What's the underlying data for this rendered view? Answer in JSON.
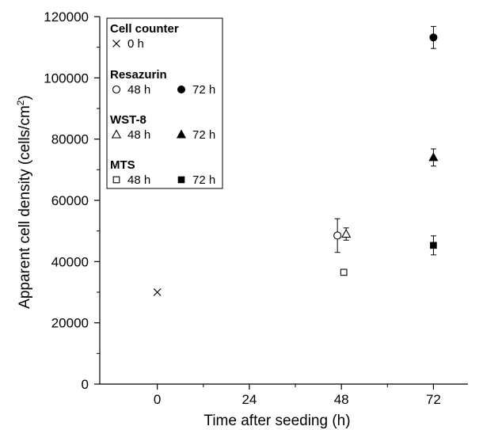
{
  "chart_data": {
    "type": "scatter",
    "xlabel": "Time after seeding (h)",
    "ylabel": "Apparent cell density (cells/cm",
    "ylabel_sup": "2",
    "ylabel_tail": ")",
    "xlim": [
      -15,
      81
    ],
    "ylim": [
      0,
      120000
    ],
    "x_ticks": [
      0,
      24,
      48,
      72
    ],
    "x_tick_labels": [
      "0",
      "24",
      "48",
      "72"
    ],
    "y_ticks": [
      0,
      20000,
      40000,
      60000,
      80000,
      100000,
      120000
    ],
    "y_tick_labels": [
      "0",
      "20000",
      "40000",
      "60000",
      "80000",
      "100000",
      "120000"
    ],
    "grid": false,
    "legend_position": "top-left",
    "series": [
      {
        "name": "0 h",
        "group": "Cell counter",
        "marker": "cross",
        "points": [
          {
            "x": 0,
            "y": 30000
          }
        ]
      },
      {
        "name": "48 h",
        "group": "Resazurin",
        "marker": "circle-open",
        "points": [
          {
            "x": 48,
            "y": 48500,
            "err": 5500
          }
        ]
      },
      {
        "name": "72 h",
        "group": "Resazurin",
        "marker": "circle-filled",
        "points": [
          {
            "x": 72,
            "y": 113200,
            "err": 3600
          }
        ]
      },
      {
        "name": "48 h",
        "group": "WST-8",
        "marker": "triangle-open",
        "points": [
          {
            "x": 48,
            "y": 49000,
            "err": 2000
          }
        ]
      },
      {
        "name": "72 h",
        "group": "WST-8",
        "marker": "triangle-filled",
        "points": [
          {
            "x": 72,
            "y": 74000,
            "err": 2800
          }
        ]
      },
      {
        "name": "48 h",
        "group": "MTS",
        "marker": "square-open",
        "points": [
          {
            "x": 48,
            "y": 36500,
            "err": 0
          }
        ]
      },
      {
        "name": "72 h",
        "group": "MTS",
        "marker": "square-filled",
        "points": [
          {
            "x": 72,
            "y": 45300,
            "err": 3100
          }
        ]
      }
    ],
    "legend": [
      {
        "title": "Cell counter",
        "items": [
          {
            "marker": "cross",
            "label": "0 h"
          }
        ]
      },
      {
        "title": "Resazurin",
        "items": [
          {
            "marker": "circle-open",
            "label": "48 h"
          },
          {
            "marker": "circle-filled",
            "label": "72 h"
          }
        ]
      },
      {
        "title": "WST-8",
        "items": [
          {
            "marker": "triangle-open",
            "label": "48 h"
          },
          {
            "marker": "triangle-filled",
            "label": "72 h"
          }
        ]
      },
      {
        "title": "MTS",
        "items": [
          {
            "marker": "square-open",
            "label": "48 h"
          },
          {
            "marker": "square-filled",
            "label": "72 h"
          }
        ]
      }
    ]
  }
}
